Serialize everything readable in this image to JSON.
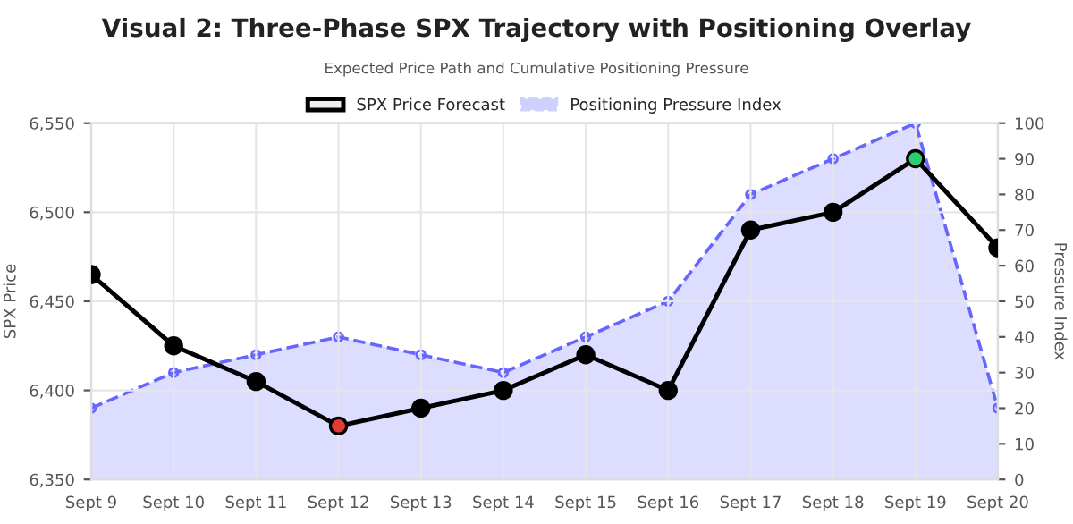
{
  "chart_data": {
    "type": "line",
    "title": "Visual 2: Three-Phase SPX Trajectory with Positioning Overlay",
    "subtitle": "Expected Price Path and Cumulative Positioning Pressure",
    "ylabel": "SPX Price",
    "y2label": "Pressure Index",
    "categories": [
      "Sept 9",
      "Sept 10",
      "Sept 11",
      "Sept 12",
      "Sept 13",
      "Sept 14",
      "Sept 15",
      "Sept 16",
      "Sept 17",
      "Sept 18",
      "Sept 19",
      "Sept 20"
    ],
    "series": [
      {
        "name": "SPX Price Forecast",
        "color": "#000000",
        "colors": [
          "#000000",
          "#000000",
          "#000000",
          "#e53935",
          "#000000",
          "#000000",
          "#000000",
          "#000000",
          "#000000",
          "#000000",
          "#2ecc71",
          "#000000"
        ],
        "marker": "circle",
        "line_style": "solid",
        "values": [
          6465,
          6425,
          6405,
          6380,
          6390,
          6400,
          6420,
          6400,
          6490,
          6500,
          6530,
          6480
        ]
      },
      {
        "name": "Positioning Pressure Index",
        "type": "area",
        "axis": "y2",
        "color": "#6666ff",
        "marker": "circle",
        "line_style": "dashed",
        "values": [
          20,
          30,
          35,
          40,
          35,
          30,
          40,
          50,
          80,
          90,
          100,
          20
        ]
      }
    ],
    "ylim": [
      6350,
      6550
    ],
    "yticks": [
      {
        "value": 6350,
        "label": "6,350"
      },
      {
        "value": 6400,
        "label": "6,400"
      },
      {
        "value": 6450,
        "label": "6,450"
      },
      {
        "value": 6500,
        "label": "6,500"
      },
      {
        "value": 6550,
        "label": "6,550"
      }
    ],
    "y2lim": [
      0,
      100
    ],
    "y2ticks": [
      0,
      10,
      20,
      30,
      40,
      50,
      60,
      70,
      80,
      90,
      100
    ],
    "grid": true,
    "legend": "top"
  }
}
